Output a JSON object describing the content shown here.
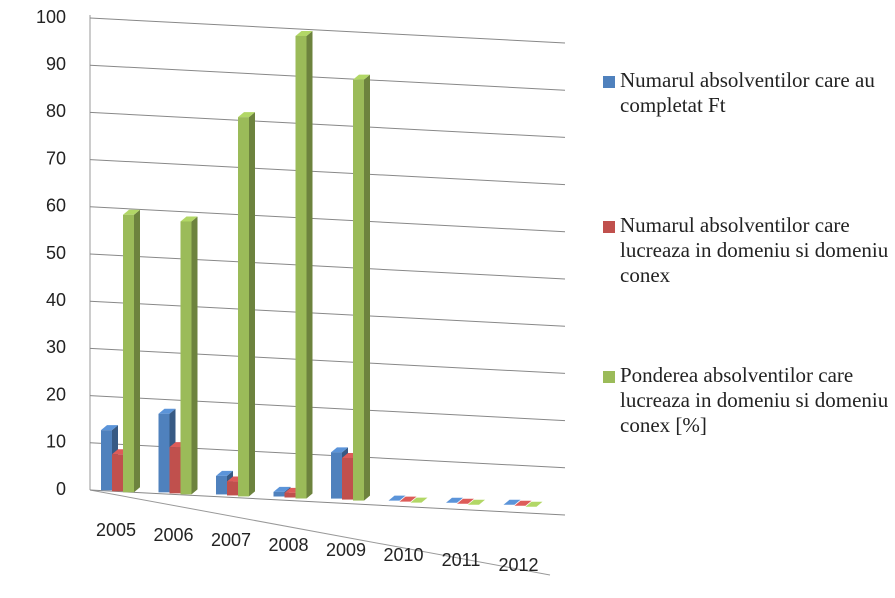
{
  "chart_data": {
    "type": "bar3d",
    "categories": [
      "2005",
      "2006",
      "2007",
      "2008",
      "2009",
      "2010",
      "2011",
      "2012"
    ],
    "series": [
      {
        "name": "Numarul absolventilor care au completat Ft",
        "color": "#4f81bd",
        "values": [
          13,
          17,
          4,
          1,
          10,
          0,
          0,
          0
        ]
      },
      {
        "name": "Numarul absolventilor care  lucreaza in domeniu si domeniu conex",
        "color": "#c0504d",
        "values": [
          8,
          10,
          3,
          1,
          9,
          0,
          0,
          0
        ]
      },
      {
        "name": "Ponderea absolventilor care  lucreaza in domeniu si domeniu conex [%]",
        "color": "#9bbb59",
        "values": [
          60,
          59,
          82,
          100,
          91,
          0,
          0,
          0
        ]
      }
    ],
    "ylim": [
      0,
      100
    ],
    "yticks": [
      0,
      10,
      20,
      30,
      40,
      50,
      60,
      70,
      80,
      90,
      100
    ],
    "grid": true,
    "legend": "right"
  }
}
